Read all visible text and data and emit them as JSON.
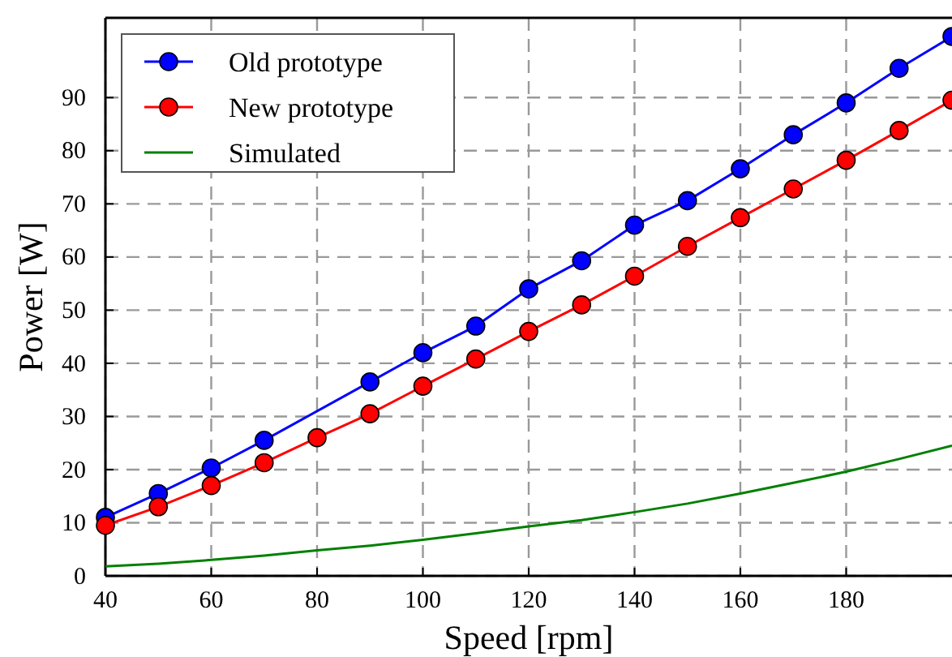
{
  "chart_data": {
    "type": "line",
    "xlabel": "Speed [rpm]",
    "ylabel": "Power [W]",
    "xlim": [
      40,
      200
    ],
    "ylim": [
      0,
      105
    ],
    "xticks": [
      40,
      60,
      80,
      100,
      120,
      140,
      160,
      180
    ],
    "yticks": [
      0,
      10,
      20,
      30,
      40,
      50,
      60,
      70,
      80,
      90
    ],
    "grid": true,
    "legend": "top left",
    "series": [
      {
        "name": "Old prototype",
        "color": "#0000ff",
        "marker": "circle",
        "x": [
          40,
          50,
          60,
          70,
          90,
          100,
          110,
          120,
          130,
          140,
          150,
          160,
          170,
          180,
          190,
          200
        ],
        "values": [
          11,
          15.5,
          20.3,
          25.5,
          36.5,
          42,
          47,
          54,
          59.3,
          66,
          70.6,
          76.6,
          83,
          89,
          95.5,
          101.5
        ]
      },
      {
        "name": "New prototype",
        "color": "#ff0000",
        "marker": "circle",
        "x": [
          40,
          50,
          60,
          70,
          80,
          90,
          100,
          110,
          120,
          130,
          140,
          150,
          160,
          170,
          180,
          190,
          200
        ],
        "values": [
          9.5,
          13,
          17,
          21.3,
          26,
          30.5,
          35.7,
          40.8,
          46,
          51,
          56.4,
          62,
          67.4,
          72.8,
          78.2,
          83.8,
          89.5
        ]
      },
      {
        "name": "Simulated",
        "color": "#008000",
        "marker": "none",
        "x": [
          40,
          50,
          60,
          70,
          80,
          90,
          100,
          110,
          120,
          130,
          140,
          150,
          160,
          170,
          180,
          190,
          200
        ],
        "values": [
          1.8,
          2.3,
          3,
          3.8,
          4.8,
          5.7,
          6.8,
          8,
          9.3,
          10.5,
          12,
          13.6,
          15.5,
          17.5,
          19.6,
          22,
          24.5
        ]
      }
    ]
  }
}
